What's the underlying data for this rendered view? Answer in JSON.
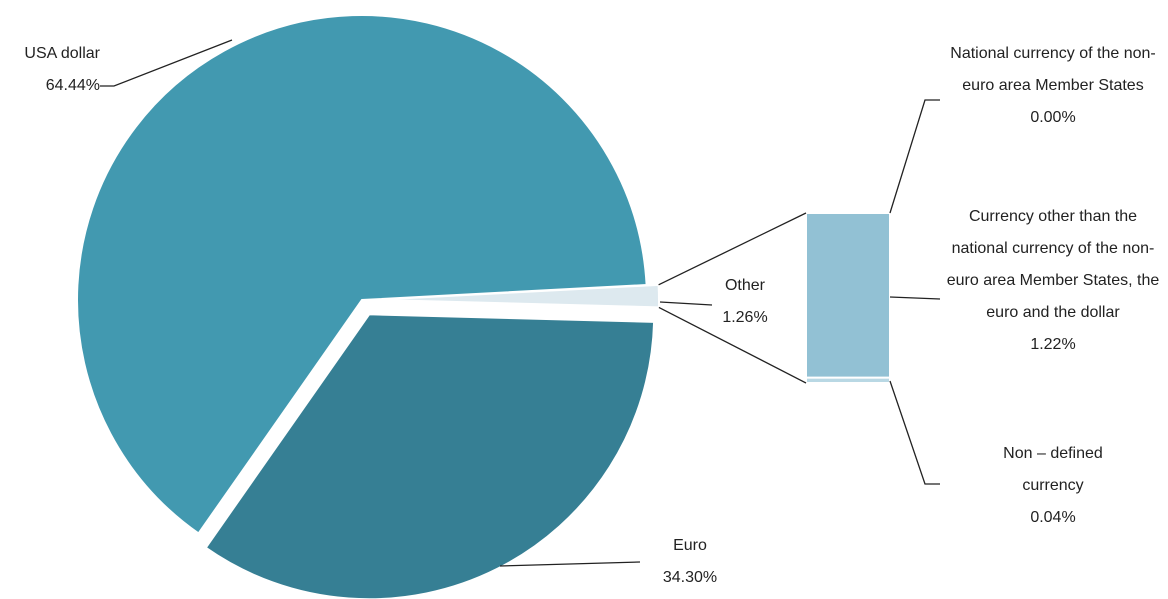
{
  "chart_data": {
    "type": "pie-of-bar",
    "categories": [
      "USA dollar",
      "Euro",
      "Other"
    ],
    "values": [
      64.44,
      34.3,
      1.26
    ],
    "value_labels": [
      "64.44%",
      "34.30%",
      "1.26%"
    ],
    "colors": [
      "#4299b0",
      "#367f94",
      "#dde9ef"
    ],
    "breakdown": {
      "categories": [
        "National currency of the non-euro area Member States",
        "Currency other than the national currency of the non-euro area Member States, the euro and the dollar",
        "Non – defined currency"
      ],
      "values": [
        0.0,
        1.22,
        0.04
      ],
      "value_labels": [
        "0.00%",
        "1.22%",
        "0.04%"
      ],
      "colors": [
        "#b9d8e4",
        "#92c1d4",
        "#b9d8e4"
      ]
    }
  }
}
